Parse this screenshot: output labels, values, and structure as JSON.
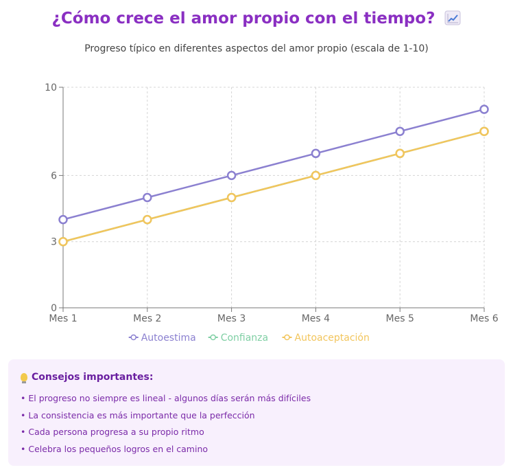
{
  "header": {
    "title": "¿Cómo crece el amor propio con el tiempo?",
    "title_icon": "chart-increasing-icon",
    "subtitle": "Progreso típico en diferentes aspectos del amor propio (escala de 1-10)"
  },
  "chart_data": {
    "type": "line",
    "categories": [
      "Mes 1",
      "Mes 2",
      "Mes 3",
      "Mes 4",
      "Mes 5",
      "Mes 6"
    ],
    "yticks": [
      0,
      3,
      6,
      10
    ],
    "ylim": [
      0,
      10
    ],
    "grid": true,
    "legend_position": "bottom",
    "series": [
      {
        "name": "Autoestima",
        "values": [
          4,
          5,
          6,
          7,
          8,
          9
        ],
        "color": "#8b80d0"
      },
      {
        "name": "Confianza",
        "values": [
          3,
          4,
          5,
          6,
          7,
          8
        ],
        "color": "#7fcfa4"
      },
      {
        "name": "Autoaceptación",
        "values": [
          3,
          4,
          5,
          6,
          7,
          8
        ],
        "color": "#f2c55c"
      }
    ]
  },
  "tips": {
    "icon": "lightbulb-icon",
    "title": "Consejos importantes:",
    "items": [
      "El progreso no siempre es lineal - algunos días serán más difíciles",
      "La consistencia es más importante que la perfección",
      "Cada persona progresa a su propio ritmo",
      "Celebra los pequeños logros en el camino"
    ]
  }
}
